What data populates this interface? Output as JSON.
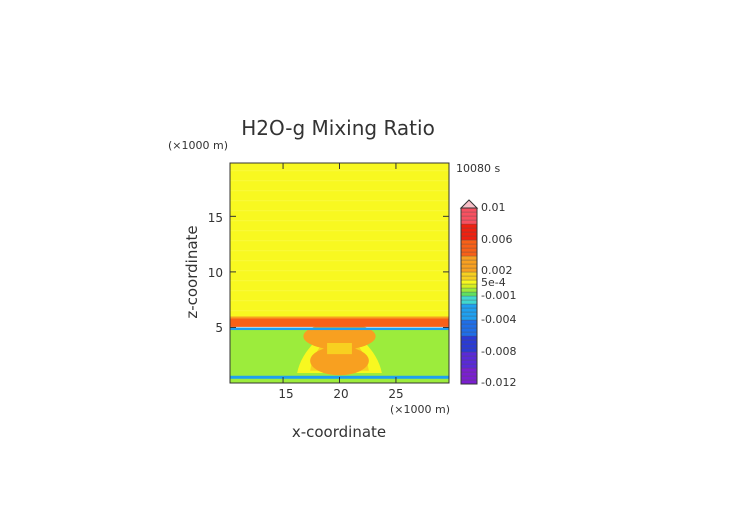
{
  "chart_data": {
    "type": "heatmap",
    "title": "H2O-g Mixing Ratio",
    "time_label": "10080 s",
    "xlabel": "x-coordinate",
    "ylabel": "z-coordinate",
    "x_unit": "(×1000 m)",
    "y_unit": "(×1000 m)",
    "xlim": [
      10.3,
      29.7
    ],
    "ylim": [
      0,
      19.8
    ],
    "x_ticks": [
      "15",
      "20",
      "25"
    ],
    "y_ticks": [
      "5",
      "10",
      "15"
    ],
    "colorbar": {
      "range": [
        -0.012,
        0.01
      ],
      "labels": [
        "0.01",
        "0.006",
        "0.002",
        "5e-4",
        "-0.001",
        "-0.004",
        "-0.008",
        "-0.012"
      ],
      "label_values": [
        0.01,
        0.006,
        0.002,
        0.0005,
        -0.001,
        -0.004,
        -0.008,
        -0.012
      ],
      "overflow_arrow": "top"
    },
    "field": {
      "upper_region": {
        "z_range": [
          5.7,
          19.8
        ],
        "value": 0.0005
      },
      "red_band": {
        "z_range": [
          5.05,
          5.85
        ],
        "value": 0.005
      },
      "blue_line_upper": {
        "z": 4.9,
        "value": -0.003
      },
      "lower_region": {
        "z_range": [
          0.6,
          4.9
        ],
        "value": -0.0005
      },
      "blue_line_lower": {
        "z": 0.5,
        "value": -0.003
      },
      "central_plume": {
        "x_center": 20,
        "z_range": [
          1.0,
          5.3
        ],
        "value": 0.002
      }
    }
  }
}
